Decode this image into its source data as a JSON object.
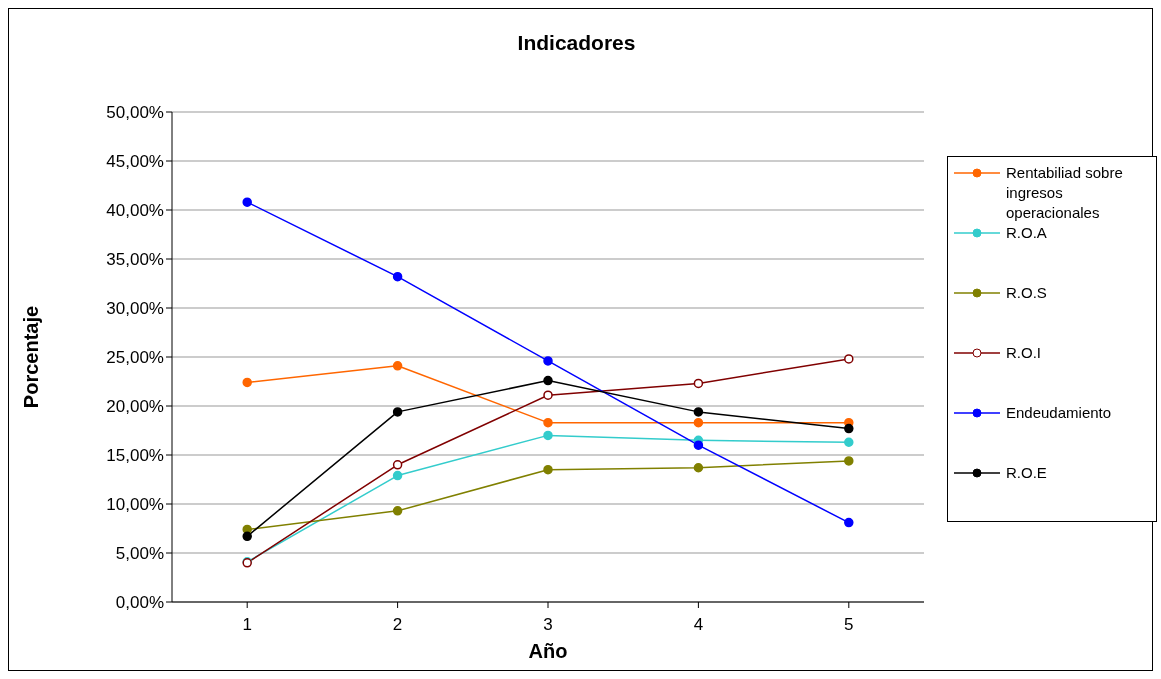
{
  "chart_data": {
    "type": "line",
    "title": "Indicadores",
    "xlabel": "Año",
    "ylabel": "Porcentaje",
    "categories": [
      "1",
      "2",
      "3",
      "4",
      "5"
    ],
    "series": [
      {
        "name": "Rentabiliad sobre ingresos operacionales",
        "color": "#ff6600",
        "values": [
          22.4,
          24.1,
          18.3,
          18.3,
          18.3
        ]
      },
      {
        "name": "R.O.A",
        "color": "#33cccc",
        "values": [
          4.1,
          12.9,
          17.0,
          16.5,
          16.3
        ]
      },
      {
        "name": "R.O.S",
        "color": "#808000",
        "values": [
          7.4,
          9.3,
          13.5,
          13.7,
          14.4
        ]
      },
      {
        "name": "R.O.I",
        "color": "#800000",
        "values": [
          4.0,
          14.0,
          21.1,
          22.3,
          24.8
        ]
      },
      {
        "name": "Endeudamiento",
        "color": "#0000ff",
        "values": [
          40.8,
          33.2,
          24.6,
          16.0,
          8.1
        ]
      },
      {
        "name": "R.O.E",
        "color": "#000000",
        "values": [
          6.7,
          19.4,
          22.6,
          19.4,
          17.7
        ]
      }
    ],
    "ylim": [
      0,
      50
    ],
    "yticks": [
      {
        "value": 0,
        "label": "0,00%"
      },
      {
        "value": 5,
        "label": "5,00%"
      },
      {
        "value": 10,
        "label": "10,00%"
      },
      {
        "value": 15,
        "label": "15,00%"
      },
      {
        "value": 20,
        "label": "20,00%"
      },
      {
        "value": 25,
        "label": "25,00%"
      },
      {
        "value": 30,
        "label": "30,00%"
      },
      {
        "value": 35,
        "label": "35,00%"
      },
      {
        "value": 40,
        "label": "40,00%"
      },
      {
        "value": 45,
        "label": "45,00%"
      },
      {
        "value": 50,
        "label": "50,00%"
      }
    ],
    "grid": "y",
    "legend": "right",
    "marker": "circle",
    "line_style": "solid"
  }
}
